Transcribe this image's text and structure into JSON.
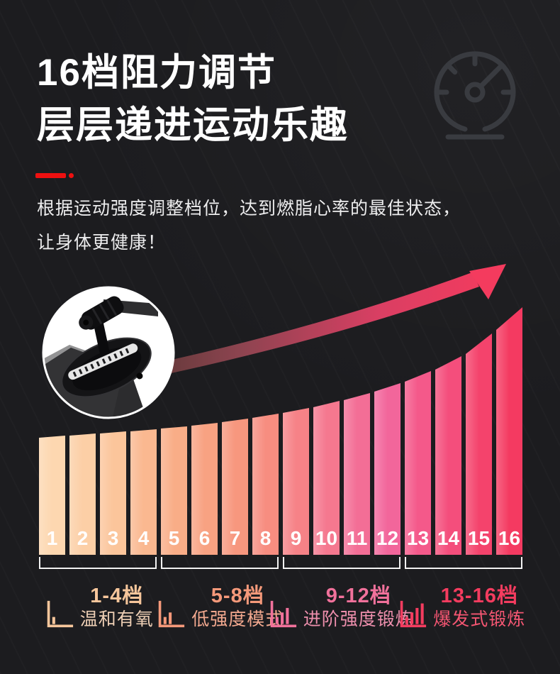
{
  "header": {
    "title_line1": "16档阻力调节",
    "title_line2": "层层递进运动乐趣",
    "description_line1": "根据运动强度调整档位，达到燃脂心率的最佳状态，",
    "description_line2": "让身体更健康！"
  },
  "icons": {
    "speedometer": "gauge-dial-with-needle-and-base-line",
    "growth_arrow": "curved-ascending-arrow",
    "shifter_photo": "resistance-gear-shifter-lever-photo-in-circle",
    "mini_bar_chart": "ascending-bars-on-L-axis"
  },
  "colors": {
    "background": "#1c1c1f",
    "accent_red": "#ee1010",
    "title_white": "#ffffff",
    "description_white": "#ededee",
    "gauge_icon": "#393b40",
    "bracket_white": "#f2f2f2",
    "bar_number_white": "#ffffff",
    "arrow_gradient_start": "#4b332c",
    "arrow_gradient_end": "#f43b5e"
  },
  "chart_data": {
    "type": "bar",
    "title": "",
    "xlabel": "",
    "ylabel": "",
    "categories": [
      "1",
      "2",
      "3",
      "4",
      "5",
      "6",
      "7",
      "8",
      "9",
      "10",
      "11",
      "12",
      "13",
      "14",
      "15",
      "16"
    ],
    "values": [
      165,
      168,
      171,
      174,
      178,
      182,
      187,
      193,
      200,
      208,
      218,
      230,
      244,
      261,
      283,
      317
    ],
    "value_unit": "relative bar height (px), no numeric axis shown",
    "bar_colors": [
      "#fdd7b0",
      "#fccfa6",
      "#fbc59b",
      "#fab890",
      "#f9ad87",
      "#f8a282",
      "#f7977e",
      "#f78d80",
      "#f68287",
      "#f5788f",
      "#f36e96",
      "#f2669b",
      "#f4598a",
      "#f44e7c",
      "#f4436c",
      "#f43a61"
    ],
    "grid": false,
    "legend_position": "none",
    "annotations": [
      "curved ascending arrow sweeping above the bars from level 1 to level 16"
    ]
  },
  "groups": [
    {
      "range": "1-4档",
      "label": "温和有氧",
      "color": "#f6c69b",
      "label_color": "#eecfb5",
      "icon_bars": 1
    },
    {
      "range": "5-8档",
      "label": "低强度模式",
      "color": "#f5997a",
      "label_color": "#f3a98f",
      "icon_bars": 2
    },
    {
      "range": "9-12档",
      "label": "进阶强度锻炼",
      "color": "#f1719b",
      "label_color": "#ee8fad",
      "icon_bars": 3
    },
    {
      "range": "13-16档",
      "label": "爆发式锻炼",
      "color": "#f43c5f",
      "label_color": "#f45672",
      "icon_bars": 4
    }
  ]
}
